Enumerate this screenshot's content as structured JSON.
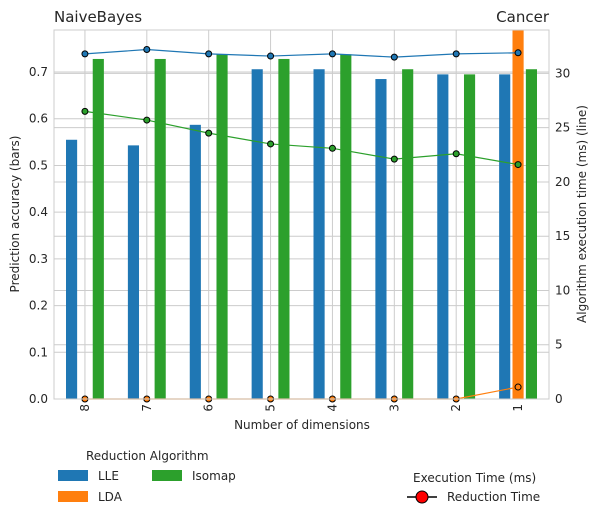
{
  "chart_data": {
    "type": "bar",
    "title_left": "NaiveBayes",
    "title_right": "Cancer",
    "xlabel": "Number of dimensions",
    "ylabel_left": "Prediction accuracy (bars)",
    "ylabel_right": "Algorithm execution time (ms) (line)",
    "categories": [
      "8",
      "7",
      "6",
      "5",
      "4",
      "3",
      "2",
      "1"
    ],
    "ylim_left": [
      0,
      0.79
    ],
    "yticks_left": [
      "0.0",
      "0.1",
      "0.2",
      "0.3",
      "0.4",
      "0.5",
      "0.6",
      "0.7"
    ],
    "ylim_right": [
      0,
      34
    ],
    "yticks_right": [
      "0",
      "5",
      "10",
      "15",
      "20",
      "25",
      "30"
    ],
    "grid": true,
    "bar_series": [
      {
        "name": "LLE",
        "color": "#1f77b4",
        "values": [
          0.555,
          0.543,
          0.587,
          0.706,
          0.706,
          0.685,
          0.695,
          0.695
        ]
      },
      {
        "name": "LDA",
        "color": "#ff7f0e",
        "values": [
          null,
          null,
          null,
          null,
          null,
          null,
          null,
          0.79
        ]
      },
      {
        "name": "Isomap",
        "color": "#2ca02c",
        "values": [
          0.728,
          0.728,
          0.738,
          0.728,
          0.738,
          0.706,
          0.695,
          0.706
        ]
      }
    ],
    "line_series": [
      {
        "algorithm": "LLE",
        "color": "#1f77b4",
        "values": [
          31.8,
          32.2,
          31.8,
          31.6,
          31.8,
          31.5,
          31.8,
          31.9
        ]
      },
      {
        "algorithm": "LDA",
        "color": "#ff7f0e",
        "values": [
          0,
          0,
          0,
          0,
          0,
          0,
          0,
          1.1
        ]
      },
      {
        "algorithm": "Isomap",
        "color": "#2ca02c",
        "values": [
          26.5,
          25.7,
          24.5,
          23.5,
          23.1,
          22.1,
          22.6,
          21.6
        ]
      }
    ],
    "legend_bars_title": "Reduction Algorithm",
    "legend_line_title": "Execution Time (ms)",
    "legend_line_label": "Reduction Time",
    "legend_line_marker_color": "#ff0000"
  }
}
